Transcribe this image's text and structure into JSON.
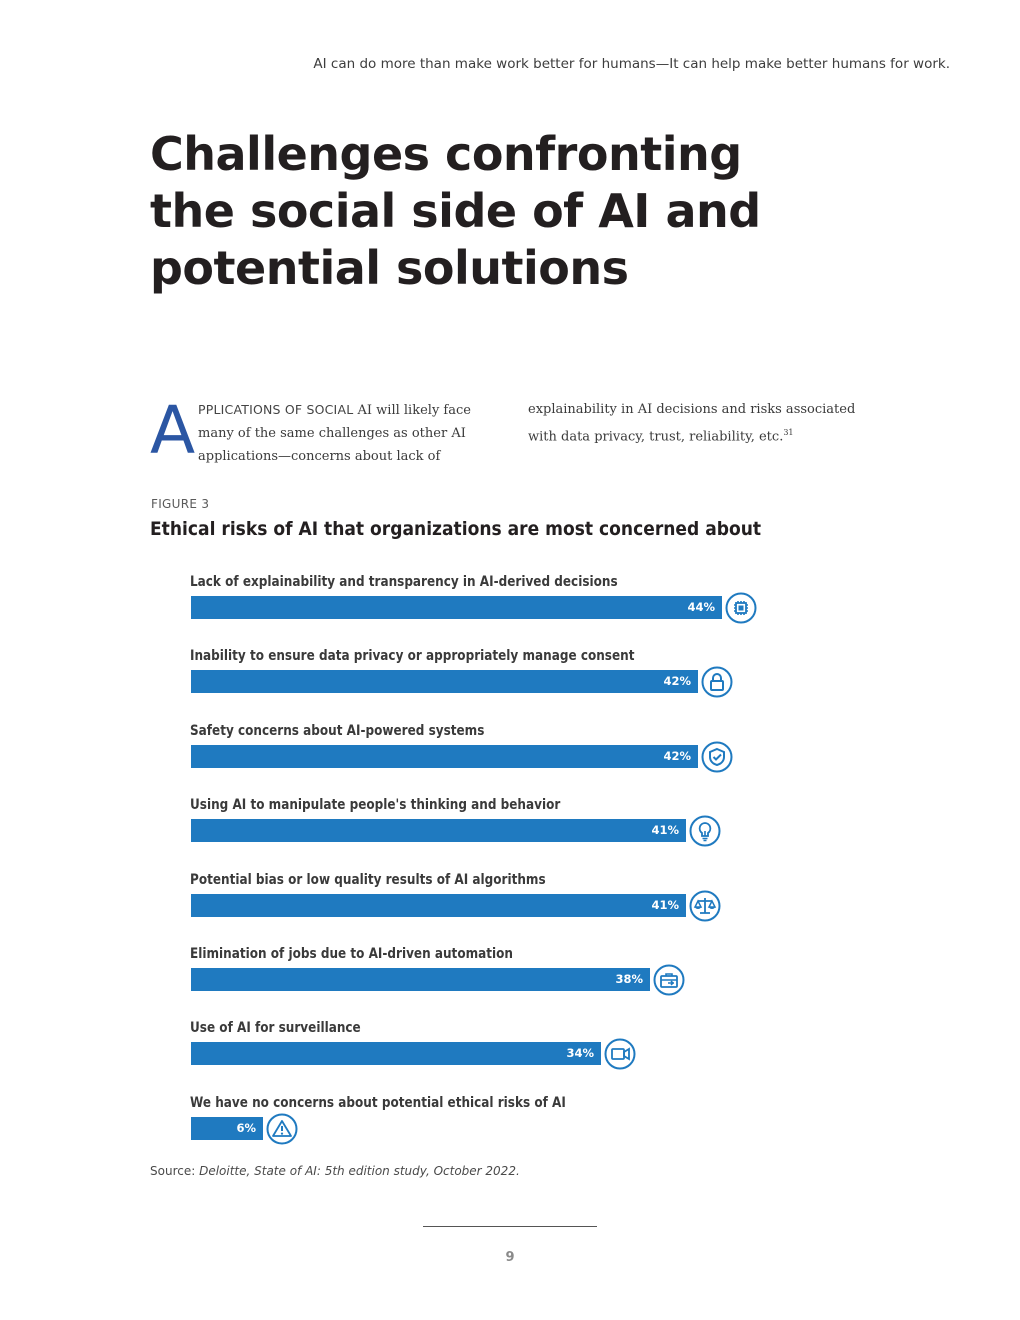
{
  "header": {
    "running_title": "AI can do more than make work better for humans—It can help make better humans for work."
  },
  "title": {
    "line1": "Challenges confronting",
    "line2": "the social side of AI and",
    "line3": "potential solutions"
  },
  "intro": {
    "dropcap": "A",
    "smallcaps": "PPLICATIONS OF SOCIAL",
    "col1_text": " AI will likely face many of the same challenges as other AI applications—concerns about lack of",
    "col2_text": "explainability in AI decisions and risks associated with data privacy, trust, reliability, etc.",
    "footnote": "31"
  },
  "figure": {
    "label": "FIGURE 3",
    "title": "Ethical risks of AI that organizations are most concerned about"
  },
  "chart_data": {
    "type": "bar",
    "orientation": "horizontal",
    "title": "Ethical risks of AI that organizations are most concerned about",
    "xlabel": "",
    "ylabel": "",
    "xlim": [
      0,
      44
    ],
    "unit": "%",
    "bar_color": "#1f7ac0",
    "icon_color": "#1f7ac0",
    "categories": [
      "Lack of explainability and transparency in AI-derived decisions",
      "Inability to ensure data privacy or appropriately manage consent",
      "Safety concerns about AI-powered systems",
      "Using AI to manipulate people's thinking and behavior",
      "Potential bias or low quality results of AI algorithms",
      "Elimination of jobs due to AI-driven automation",
      "Use of AI for surveillance",
      "We have no concerns about potential ethical risks of AI"
    ],
    "values": [
      44,
      42,
      42,
      41,
      41,
      38,
      34,
      6
    ],
    "value_labels": [
      "44%",
      "42%",
      "42%",
      "41%",
      "41%",
      "38%",
      "34%",
      "6%"
    ],
    "icons": [
      "chip-icon",
      "lock-icon",
      "shield-check-icon",
      "lightbulb-icon",
      "scales-icon",
      "briefcase-icon",
      "video-camera-icon",
      "warning-icon"
    ]
  },
  "source": {
    "prefix": "Source: ",
    "citation": "Deloitte, State of AI: 5th edition study, October 2022."
  },
  "footer": {
    "page_number": "9"
  }
}
